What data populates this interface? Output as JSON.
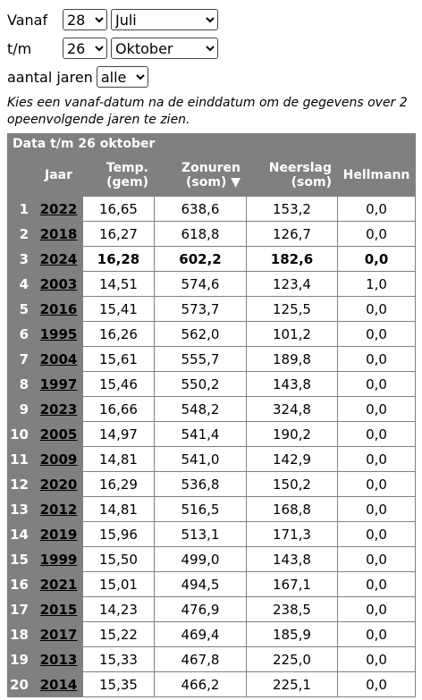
{
  "form": {
    "from_label": "Vanaf",
    "from_day": "28",
    "from_month": "Juli",
    "to_label": "t/m",
    "to_day": "26",
    "to_month": "Oktober",
    "years_label": "aantal jaren",
    "years": "alle",
    "note": "Kies een vanaf-datum na de einddatum om de gegevens over 2 opeenvolgende jaren te zien."
  },
  "table": {
    "title": "Data t/m 26 oktober",
    "header": {
      "year": "Jaar",
      "temp": [
        "Temp.",
        "(gem)"
      ],
      "sun": [
        "Zonuren",
        "(som) ▼"
      ],
      "rain": [
        "Neerslag",
        "(som)"
      ],
      "hellmann": "Hellmann"
    },
    "rows": [
      [
        "1",
        "2022",
        "16,65",
        "638,6",
        "153,2",
        "0,0"
      ],
      [
        "2",
        "2018",
        "16,27",
        "618,8",
        "126,7",
        "0,0"
      ],
      [
        "3",
        "2024",
        "16,28",
        "602,2",
        "182,6",
        "0,0"
      ],
      [
        "4",
        "2003",
        "14,51",
        "574,6",
        "123,4",
        "1,0"
      ],
      [
        "5",
        "2016",
        "15,41",
        "573,7",
        "125,5",
        "0,0"
      ],
      [
        "6",
        "1995",
        "16,26",
        "562,0",
        "101,2",
        "0,0"
      ],
      [
        "7",
        "2004",
        "15,61",
        "555,7",
        "189,8",
        "0,0"
      ],
      [
        "8",
        "1997",
        "15,46",
        "550,2",
        "143,8",
        "0,0"
      ],
      [
        "9",
        "2023",
        "16,66",
        "548,2",
        "324,8",
        "0,0"
      ],
      [
        "10",
        "2005",
        "14,97",
        "541,4",
        "190,2",
        "0,0"
      ],
      [
        "11",
        "2009",
        "14,81",
        "541,0",
        "142,9",
        "0,0"
      ],
      [
        "12",
        "2020",
        "16,29",
        "536,8",
        "150,2",
        "0,0"
      ],
      [
        "13",
        "2012",
        "14,81",
        "516,5",
        "168,8",
        "0,0"
      ],
      [
        "14",
        "2019",
        "15,96",
        "513,1",
        "171,3",
        "0,0"
      ],
      [
        "15",
        "1999",
        "15,50",
        "499,0",
        "143,8",
        "0,0"
      ],
      [
        "16",
        "2021",
        "15,01",
        "494,5",
        "167,1",
        "0,0"
      ],
      [
        "17",
        "2015",
        "14,23",
        "476,9",
        "238,5",
        "0,0"
      ],
      [
        "18",
        "2017",
        "15,22",
        "469,4",
        "185,9",
        "0,0"
      ],
      [
        "19",
        "2013",
        "15,33",
        "467,8",
        "225,0",
        "0,0"
      ],
      [
        "20",
        "2014",
        "15,35",
        "466,2",
        "225,1",
        "0,0"
      ]
    ]
  }
}
